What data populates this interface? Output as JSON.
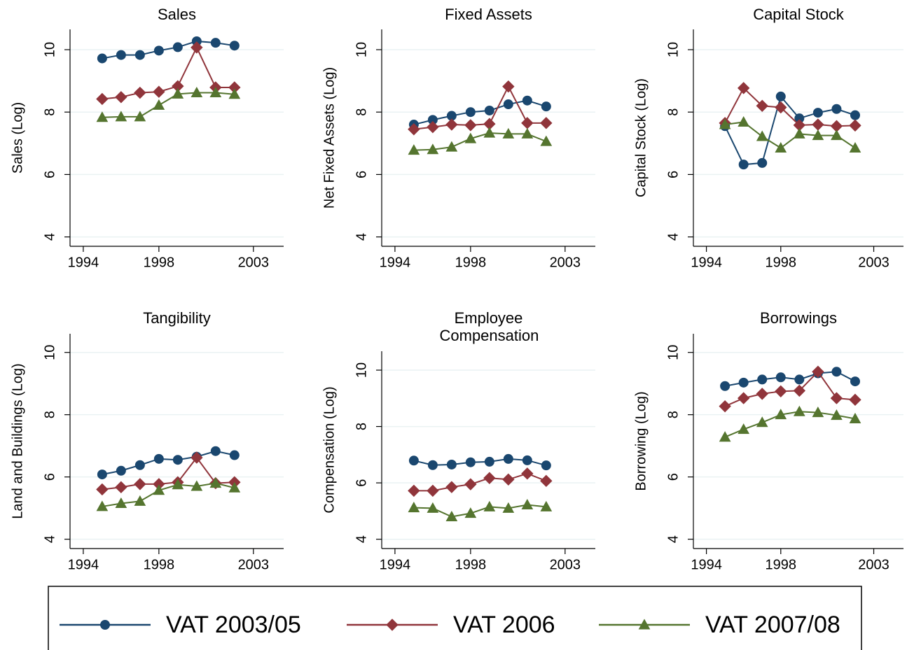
{
  "legend": [
    {
      "name": "VAT 2003/05",
      "color": "#1a476f",
      "marker": "circle"
    },
    {
      "name": "VAT 2006",
      "color": "#90353b",
      "marker": "diamond"
    },
    {
      "name": "VAT 2007/08",
      "color": "#55752f",
      "marker": "triangle"
    }
  ],
  "chart_data": [
    {
      "type": "line",
      "title": "Sales",
      "y_label": "Sales (Log)",
      "x": [
        1995,
        1996,
        1997,
        1998,
        1999,
        2000,
        2001,
        2002
      ],
      "xlim": [
        1993.3,
        2004.6
      ],
      "xticks": [
        1994,
        1998,
        2003
      ],
      "ylim": [
        3.7,
        10.65
      ],
      "yticks": [
        4,
        6,
        8,
        10
      ],
      "grid": true,
      "series": [
        {
          "values": [
            9.72,
            9.83,
            9.83,
            9.97,
            10.08,
            10.27,
            10.22,
            10.13
          ]
        },
        {
          "values": [
            8.42,
            8.48,
            8.62,
            8.65,
            8.83,
            10.07,
            8.79,
            8.79
          ]
        },
        {
          "values": [
            7.83,
            7.85,
            7.85,
            8.22,
            8.58,
            8.62,
            8.62,
            8.57
          ]
        }
      ]
    },
    {
      "type": "line",
      "title": "Fixed Assets",
      "y_label": "Net Fixed Assets (Log)",
      "x": [
        1995,
        1996,
        1997,
        1998,
        1999,
        2000,
        2001,
        2002
      ],
      "xlim": [
        1993.3,
        2004.6
      ],
      "xticks": [
        1994,
        1998,
        2003
      ],
      "ylim": [
        3.7,
        10.65
      ],
      "yticks": [
        4,
        6,
        8,
        10
      ],
      "grid": true,
      "series": [
        {
          "values": [
            7.6,
            7.75,
            7.88,
            8.0,
            8.05,
            8.25,
            8.37,
            8.18
          ]
        },
        {
          "values": [
            7.45,
            7.52,
            7.6,
            7.58,
            7.62,
            8.82,
            7.65,
            7.65
          ]
        },
        {
          "values": [
            6.78,
            6.8,
            6.88,
            7.15,
            7.33,
            7.3,
            7.3,
            7.06
          ]
        }
      ]
    },
    {
      "type": "line",
      "title": "Capital Stock",
      "y_label": "Capital Stock (Log)",
      "x": [
        1995,
        1996,
        1997,
        1998,
        1999,
        2000,
        2001,
        2002
      ],
      "xlim": [
        1993.3,
        2004.6
      ],
      "xticks": [
        1994,
        1998,
        2003
      ],
      "ylim": [
        3.7,
        10.65
      ],
      "yticks": [
        4,
        6,
        8,
        10
      ],
      "grid": true,
      "series": [
        {
          "values": [
            7.55,
            6.32,
            6.37,
            8.5,
            7.8,
            7.98,
            8.1,
            7.9
          ]
        },
        {
          "values": [
            7.65,
            8.77,
            8.2,
            8.15,
            7.58,
            7.6,
            7.55,
            7.57
          ]
        },
        {
          "values": [
            7.6,
            7.68,
            7.22,
            6.85,
            7.3,
            7.25,
            7.25,
            6.85
          ]
        }
      ]
    },
    {
      "type": "line",
      "title": "Tangibility",
      "y_label": "Land and Buildings (Log)",
      "x": [
        1995,
        1996,
        1997,
        1998,
        1999,
        2000,
        2001,
        2002
      ],
      "xlim": [
        1993.3,
        2004.6
      ],
      "xticks": [
        1994,
        1998,
        2003
      ],
      "ylim": [
        3.7,
        10.6
      ],
      "yticks": [
        4,
        6,
        8,
        10
      ],
      "grid": true,
      "series": [
        {
          "values": [
            6.08,
            6.2,
            6.38,
            6.58,
            6.55,
            6.65,
            6.83,
            6.7
          ]
        },
        {
          "values": [
            5.6,
            5.67,
            5.77,
            5.77,
            5.83,
            6.62,
            5.8,
            5.83
          ]
        },
        {
          "values": [
            5.05,
            5.15,
            5.22,
            5.57,
            5.75,
            5.7,
            5.8,
            5.65
          ]
        }
      ]
    },
    {
      "type": "line",
      "title": "Employee Compensation",
      "y_label": "Compensation (Log)",
      "x": [
        1995,
        1996,
        1997,
        1998,
        1999,
        2000,
        2001,
        2002
      ],
      "xlim": [
        1993.3,
        2004.6
      ],
      "xticks": [
        1994,
        1998,
        2003
      ],
      "ylim": [
        3.67,
        10.67
      ],
      "yticks": [
        4,
        6,
        8,
        10
      ],
      "grid": true,
      "series": [
        {
          "values": [
            6.79,
            6.63,
            6.65,
            6.73,
            6.75,
            6.85,
            6.8,
            6.62
          ]
        },
        {
          "values": [
            5.72,
            5.72,
            5.85,
            5.95,
            6.17,
            6.12,
            6.33,
            6.07
          ]
        },
        {
          "values": [
            5.12,
            5.1,
            4.8,
            4.92,
            5.15,
            5.1,
            5.22,
            5.15
          ]
        }
      ]
    },
    {
      "type": "line",
      "title": "Borrowings",
      "y_label": "Borrowing (Log)",
      "x": [
        1995,
        1996,
        1997,
        1998,
        1999,
        2000,
        2001,
        2002
      ],
      "xlim": [
        1993.3,
        2004.6
      ],
      "xticks": [
        1994,
        1998,
        2003
      ],
      "ylim": [
        3.7,
        10.6
      ],
      "yticks": [
        4,
        6,
        8,
        10
      ],
      "grid": true,
      "series": [
        {
          "values": [
            8.92,
            9.03,
            9.13,
            9.2,
            9.13,
            9.33,
            9.38,
            9.07
          ]
        },
        {
          "values": [
            8.27,
            8.53,
            8.67,
            8.75,
            8.77,
            9.38,
            8.53,
            8.48
          ]
        },
        {
          "values": [
            7.28,
            7.53,
            7.75,
            8.0,
            8.1,
            8.07,
            7.98,
            7.87
          ]
        }
      ]
    }
  ]
}
